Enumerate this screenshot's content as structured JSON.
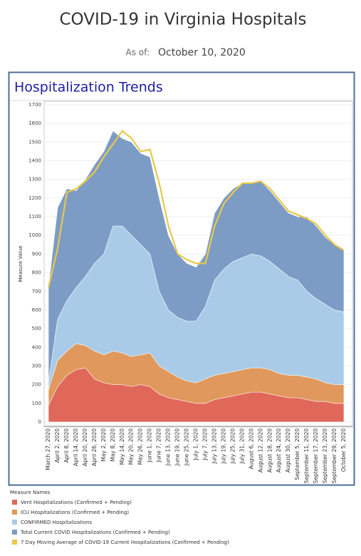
{
  "page": {
    "title": "COVID-19 in Virginia Hospitals",
    "as_of_label": "As of:",
    "as_of_date": "October 10, 2020"
  },
  "chart_data": {
    "type": "area",
    "title": "Hospitalization Trends",
    "y_label": "Measure Value",
    "legend_title": "Measure Names",
    "categories": [
      "March 27, 2020",
      "April 2, 2020",
      "April 8, 2020",
      "April 14, 2020",
      "April 20, 2020",
      "April 26, 2020",
      "May 2, 2020",
      "May 8, 2020",
      "May 14, 2020",
      "May 20, 2020",
      "May 26, 2020",
      "June 1, 2020",
      "June 7, 2020",
      "June 13, 2020",
      "June 19, 2020",
      "June 25, 2020",
      "July 1, 2020",
      "July 7, 2020",
      "July 13, 2020",
      "July 19, 2020",
      "July 25, 2020",
      "July 31, 2020",
      "August 6, 2020",
      "August 12, 2020",
      "August 18, 2020",
      "August 24, 2020",
      "August 30, 2020",
      "September 5, 2020",
      "September 11, 2020",
      "September 17, 2020",
      "September 23, 2020",
      "September 29, 2020",
      "October 5, 2020"
    ],
    "series": [
      {
        "name": "Vent Hospitalizations (Confirmed + Pending)",
        "color": "#e0685a",
        "type": "area",
        "values": [
          90,
          190,
          250,
          280,
          290,
          230,
          210,
          200,
          200,
          190,
          200,
          190,
          150,
          130,
          120,
          110,
          100,
          100,
          120,
          130,
          140,
          150,
          160,
          160,
          150,
          140,
          130,
          130,
          120,
          110,
          110,
          100,
          100
        ]
      },
      {
        "name": "ICU Hospitalizations (Confirmed + Pending)",
        "color": "#e0985c",
        "type": "area",
        "values": [
          170,
          330,
          380,
          420,
          410,
          380,
          360,
          380,
          370,
          350,
          360,
          370,
          300,
          270,
          240,
          220,
          210,
          230,
          250,
          260,
          270,
          280,
          290,
          290,
          280,
          260,
          250,
          250,
          240,
          230,
          210,
          200,
          200
        ]
      },
      {
        "name": "CONFIRMED Hospitalizations",
        "color": "#a9cbe8",
        "type": "area",
        "values": [
          210,
          550,
          650,
          720,
          780,
          850,
          900,
          1050,
          1050,
          1000,
          950,
          900,
          700,
          600,
          560,
          540,
          540,
          620,
          760,
          820,
          860,
          880,
          900,
          890,
          860,
          820,
          780,
          760,
          700,
          660,
          630,
          600,
          590
        ]
      },
      {
        "name": "Total Current COVID Hospitalizations (Confirmed + Pending)",
        "color": "#7c9cc6",
        "type": "area",
        "values": [
          720,
          1150,
          1250,
          1240,
          1300,
          1380,
          1450,
          1560,
          1520,
          1500,
          1440,
          1420,
          1200,
          1000,
          900,
          850,
          830,
          900,
          1120,
          1200,
          1250,
          1280,
          1280,
          1290,
          1240,
          1180,
          1120,
          1100,
          1100,
          1050,
          990,
          950,
          920
        ]
      },
      {
        "name": "7 Day Moving Average of COVID-19 Current Hospitalizations (Confirmed + Pending)",
        "color": "#e8c84a",
        "type": "line",
        "values": [
          720,
          930,
          1230,
          1250,
          1290,
          1340,
          1420,
          1490,
          1560,
          1520,
          1450,
          1460,
          1280,
          1050,
          900,
          870,
          850,
          850,
          1050,
          1170,
          1230,
          1280,
          1280,
          1290,
          1250,
          1190,
          1130,
          1110,
          1090,
          1060,
          1000,
          950,
          920
        ]
      }
    ],
    "ylim": [
      0,
      1700
    ],
    "yticks": [
      0,
      100,
      200,
      300,
      400,
      500,
      600,
      700,
      800,
      900,
      1000,
      1100,
      1200,
      1300,
      1400,
      1500,
      1600,
      1700
    ],
    "grid": true
  }
}
